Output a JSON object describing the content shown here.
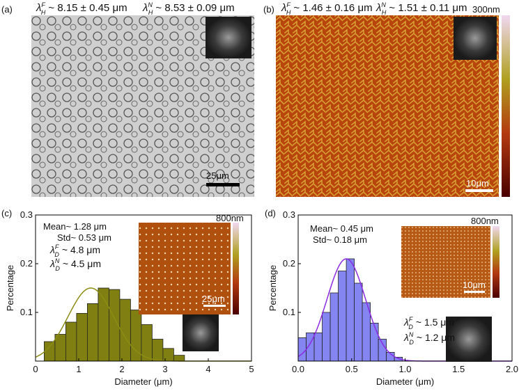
{
  "images": [
    {
      "label": "(a)",
      "annotations": [
        {
          "symbol": "λ",
          "sub": "H",
          "sup": "F",
          "text": "~ 8.15 ± 0.45  μm"
        },
        {
          "symbol": "λ",
          "sub": "H",
          "sup": "N",
          "text": "~ 8.53 ± 0.09  μm"
        }
      ],
      "scale_bar": "25μm"
    },
    {
      "label": "(b)",
      "annotations": [
        {
          "symbol": "λ",
          "sub": "H",
          "sup": "F",
          "text": "~ 1.46 ± 0.16  μm"
        },
        {
          "symbol": "λ",
          "sub": "H",
          "sup": "N",
          "text": "~ 1.51 ± 0.11  μm"
        }
      ],
      "scale_bar": "10μm",
      "colorbar_label": "300nm"
    }
  ],
  "chart_data": [
    {
      "type": "histogram",
      "label": "(c)",
      "x_label": "Diameter (μm)",
      "y_label": "Percentage",
      "bins": [
        0.2,
        0.45,
        0.7,
        0.95,
        1.2,
        1.45,
        1.7,
        1.95,
        2.2,
        2.45,
        2.7,
        2.95,
        3.2,
        3.45
      ],
      "values": [
        0.04,
        0.055,
        0.08,
        0.098,
        0.118,
        0.15,
        0.147,
        0.127,
        0.105,
        0.075,
        0.045,
        0.026,
        0.012
      ],
      "color": "#7f7f12",
      "fit": {
        "center": 1.28,
        "sigma": 0.53,
        "amplitude": 0.15,
        "color": "#8c8c14"
      },
      "xlim": [
        0,
        5
      ],
      "ylim": [
        0,
        0.3
      ],
      "xticks": [
        0,
        1,
        2,
        3,
        4,
        5
      ],
      "yticks": [
        0.1,
        0.2,
        0.3
      ],
      "stats": [
        "Mean~ 1.28 μm",
        "Std~ 0.53 μm"
      ],
      "lambdas": [
        {
          "symbol": "λ",
          "sub": "D",
          "sup": "F",
          "text": "~ 4.8  μm"
        },
        {
          "symbol": "λ",
          "sub": "D",
          "sup": "N",
          "text": "~ 4.5  μm"
        }
      ],
      "inset": {
        "colorbar_label": "800nm",
        "scale_bar": "25μm"
      }
    },
    {
      "type": "histogram",
      "label": "(d)",
      "x_label": "Diameter (μm)",
      "y_label": "Percentage",
      "bins": [
        0,
        0.075,
        0.15,
        0.225,
        0.3,
        0.375,
        0.45,
        0.525,
        0.6,
        0.675,
        0.75,
        0.825,
        0.9,
        0.975
      ],
      "values": [
        0.048,
        0.058,
        0.058,
        0.1,
        0.14,
        0.185,
        0.21,
        0.16,
        0.12,
        0.078,
        0.045,
        0.018,
        0.008
      ],
      "color": "#8585f2",
      "fit": {
        "center": 0.45,
        "sigma": 0.18,
        "amplitude": 0.21,
        "color": "#8a2be2"
      },
      "xlim": [
        0,
        2
      ],
      "ylim": [
        0,
        0.3
      ],
      "xticks": [
        {
          "value": 0,
          "label": "0.0"
        },
        0.5,
        {
          "value": 1,
          "label": "1.0"
        },
        1.5,
        {
          "value": 2,
          "label": "2.0"
        }
      ],
      "yticks": [
        0.1,
        0.2,
        0.3
      ],
      "stats": [
        "Mean~ 0.45 μm",
        "Std~ 0.18 μm"
      ],
      "lambdas": [
        {
          "symbol": "λ",
          "sub": "D",
          "sup": "F",
          "text": "~ 1.5  μm"
        },
        {
          "symbol": "λ",
          "sub": "D",
          "sup": "N",
          "text": "~ 1.2  μm"
        }
      ],
      "inset": {
        "colorbar_label": "800nm",
        "scale_bar": "10μm"
      }
    }
  ]
}
